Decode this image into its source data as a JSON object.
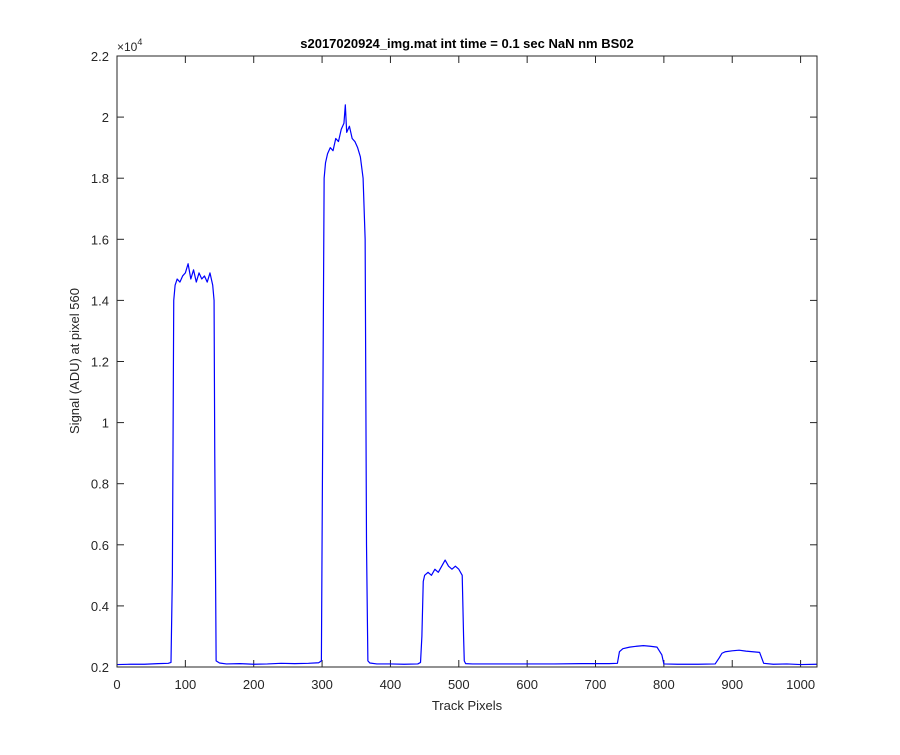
{
  "chart_data": {
    "type": "line",
    "title": "s2017020924_img.mat int time = 0.1 sec  NaN nm BS02",
    "xlabel": "Track Pixels",
    "ylabel": "Signal (ADU) at pixel 560",
    "y_exponent_label": "×10",
    "y_exponent_power": "4",
    "xlim": [
      0,
      1024
    ],
    "ylim": [
      0.2,
      2.2
    ],
    "y_scale_factor": 10000,
    "xticks": [
      0,
      100,
      200,
      300,
      400,
      500,
      600,
      700,
      800,
      900,
      1000
    ],
    "xtick_labels": [
      "0",
      "100",
      "200",
      "300",
      "400",
      "500",
      "600",
      "700",
      "800",
      "900",
      "1000"
    ],
    "yticks": [
      0.2,
      0.4,
      0.6,
      0.8,
      1.0,
      1.2,
      1.4,
      1.6,
      1.8,
      2.0,
      2.2
    ],
    "ytick_labels": [
      "0.2",
      "0.4",
      "0.6",
      "0.8",
      "1",
      "1.2",
      "1.4",
      "1.6",
      "1.8",
      "2",
      "2.2"
    ],
    "grid": false,
    "line_color": "#0000ff",
    "series": [
      {
        "x": [
          0,
          20,
          40,
          60,
          75,
          79,
          81,
          83,
          85,
          88,
          92,
          96,
          100,
          104,
          108,
          112,
          116,
          120,
          124,
          128,
          132,
          136,
          140,
          142,
          143,
          145,
          150,
          160,
          180,
          200,
          220,
          240,
          260,
          280,
          295,
          299,
          301,
          303,
          305,
          308,
          312,
          316,
          320,
          324,
          328,
          332,
          334,
          336,
          340,
          344,
          348,
          352,
          356,
          360,
          363,
          365,
          367,
          370,
          380,
          400,
          420,
          440,
          444,
          446,
          448,
          450,
          455,
          460,
          465,
          470,
          475,
          480,
          485,
          490,
          495,
          500,
          505,
          507,
          508,
          510,
          520,
          560,
          600,
          640,
          680,
          720,
          732,
          735,
          740,
          750,
          760,
          770,
          780,
          790,
          797,
          800,
          820,
          850,
          875,
          881,
          885,
          890,
          900,
          910,
          920,
          930,
          940,
          943,
          946,
          960,
          980,
          1000,
          1024
        ],
        "y": [
          0.208,
          0.209,
          0.209,
          0.211,
          0.212,
          0.215,
          0.5,
          1.4,
          1.45,
          1.47,
          1.46,
          1.48,
          1.49,
          1.52,
          1.47,
          1.5,
          1.46,
          1.49,
          1.47,
          1.48,
          1.46,
          1.49,
          1.45,
          1.4,
          0.9,
          0.22,
          0.213,
          0.21,
          0.211,
          0.209,
          0.21,
          0.212,
          0.211,
          0.212,
          0.214,
          0.22,
          1.0,
          1.8,
          1.85,
          1.88,
          1.9,
          1.89,
          1.93,
          1.92,
          1.96,
          1.98,
          2.04,
          1.95,
          1.97,
          1.93,
          1.92,
          1.9,
          1.87,
          1.8,
          1.6,
          0.6,
          0.22,
          0.213,
          0.21,
          0.21,
          0.209,
          0.21,
          0.215,
          0.3,
          0.48,
          0.5,
          0.51,
          0.5,
          0.52,
          0.51,
          0.53,
          0.55,
          0.53,
          0.52,
          0.53,
          0.52,
          0.5,
          0.3,
          0.22,
          0.211,
          0.21,
          0.21,
          0.21,
          0.21,
          0.211,
          0.211,
          0.212,
          0.25,
          0.26,
          0.265,
          0.268,
          0.27,
          0.268,
          0.265,
          0.24,
          0.21,
          0.209,
          0.209,
          0.21,
          0.23,
          0.245,
          0.25,
          0.253,
          0.255,
          0.252,
          0.25,
          0.248,
          0.23,
          0.212,
          0.209,
          0.21,
          0.208,
          0.209
        ]
      }
    ]
  }
}
